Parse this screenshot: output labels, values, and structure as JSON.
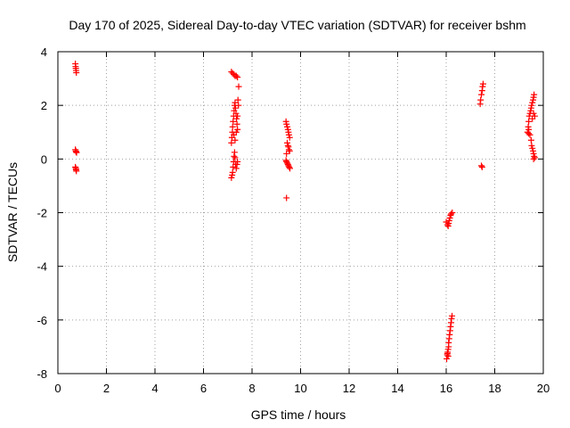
{
  "chart_data": {
    "type": "scatter",
    "title": "Day 170 of 2025, Sidereal Day-to-day VTEC variation (SDTVAR) for receiver bshm",
    "xlabel": "GPS time / hours",
    "ylabel": "SDTVAR / TECUs",
    "xlim": [
      0,
      20
    ],
    "ylim": [
      -8,
      4
    ],
    "xticks": [
      0,
      2,
      4,
      6,
      8,
      10,
      12,
      14,
      16,
      18,
      20
    ],
    "yticks": [
      -8,
      -6,
      -4,
      -2,
      0,
      2,
      4
    ],
    "xtick_labels": [
      "0",
      "2",
      "4",
      "6",
      "8",
      "10",
      "12",
      "14",
      "16",
      "18",
      "20"
    ],
    "ytick_labels": [
      "-8",
      "-6",
      "-4",
      "-2",
      "0",
      "2",
      "4"
    ],
    "grid": true,
    "marker": "+",
    "colors": {
      "series": "#ff0000",
      "grid": "#a0a0a0",
      "axis": "#000000"
    },
    "series": [
      {
        "name": "SDTVAR",
        "points": [
          [
            0.72,
            3.55
          ],
          [
            0.73,
            3.45
          ],
          [
            0.74,
            3.38
          ],
          [
            0.75,
            3.3
          ],
          [
            0.76,
            3.22
          ],
          [
            0.72,
            0.35
          ],
          [
            0.74,
            0.3
          ],
          [
            0.75,
            0.27
          ],
          [
            0.77,
            0.24
          ],
          [
            0.72,
            -0.3
          ],
          [
            0.74,
            -0.35
          ],
          [
            0.75,
            -0.4
          ],
          [
            0.76,
            -0.45
          ],
          [
            7.15,
            3.25
          ],
          [
            7.2,
            3.2
          ],
          [
            7.25,
            3.15
          ],
          [
            7.3,
            3.1
          ],
          [
            7.35,
            3.1
          ],
          [
            7.4,
            3.05
          ],
          [
            7.45,
            2.7
          ],
          [
            7.15,
            0.6
          ],
          [
            7.17,
            0.8
          ],
          [
            7.19,
            1.0
          ],
          [
            7.2,
            1.2
          ],
          [
            7.22,
            1.4
          ],
          [
            7.24,
            1.6
          ],
          [
            7.26,
            1.8
          ],
          [
            7.28,
            2.0
          ],
          [
            7.3,
            2.1
          ],
          [
            7.32,
            1.9
          ],
          [
            7.34,
            1.7
          ],
          [
            7.36,
            1.5
          ],
          [
            7.38,
            1.3
          ],
          [
            7.4,
            1.1
          ],
          [
            7.42,
            2.2
          ],
          [
            7.44,
            2.0
          ],
          [
            7.25,
            0.9
          ],
          [
            7.3,
            0.7
          ],
          [
            7.35,
            1.0
          ],
          [
            7.4,
            1.6
          ],
          [
            7.15,
            -0.7
          ],
          [
            7.18,
            -0.6
          ],
          [
            7.2,
            -0.5
          ],
          [
            7.22,
            -0.3
          ],
          [
            7.24,
            -0.1
          ],
          [
            7.26,
            0.1
          ],
          [
            7.28,
            0.25
          ],
          [
            7.3,
            0.05
          ],
          [
            7.32,
            -0.2
          ],
          [
            7.35,
            -0.35
          ],
          [
            7.38,
            -0.2
          ],
          [
            7.4,
            -0.1
          ],
          [
            9.4,
            1.4
          ],
          [
            9.42,
            1.3
          ],
          [
            9.45,
            1.2
          ],
          [
            9.48,
            1.1
          ],
          [
            9.5,
            1.0
          ],
          [
            9.52,
            0.9
          ],
          [
            9.55,
            0.8
          ],
          [
            9.45,
            0.6
          ],
          [
            9.48,
            0.5
          ],
          [
            9.5,
            0.45
          ],
          [
            9.52,
            0.35
          ],
          [
            9.55,
            0.3
          ],
          [
            9.42,
            0.2
          ],
          [
            9.4,
            -0.05
          ],
          [
            9.42,
            -0.1
          ],
          [
            9.45,
            -0.15
          ],
          [
            9.48,
            -0.2
          ],
          [
            9.5,
            -0.25
          ],
          [
            9.53,
            -0.3
          ],
          [
            9.56,
            -0.35
          ],
          [
            9.42,
            -1.45
          ],
          [
            16.0,
            -2.35
          ],
          [
            16.05,
            -2.45
          ],
          [
            16.1,
            -2.4
          ],
          [
            16.12,
            -2.3
          ],
          [
            16.15,
            -2.2
          ],
          [
            16.18,
            -2.1
          ],
          [
            16.2,
            -2.05
          ],
          [
            16.25,
            -2.0
          ],
          [
            16.08,
            -2.5
          ],
          [
            16.02,
            -7.45
          ],
          [
            16.04,
            -7.3
          ],
          [
            16.06,
            -7.2
          ],
          [
            16.08,
            -7.1
          ],
          [
            16.1,
            -7.0
          ],
          [
            16.1,
            -6.85
          ],
          [
            16.12,
            -6.7
          ],
          [
            16.14,
            -6.55
          ],
          [
            16.16,
            -6.4
          ],
          [
            16.18,
            -6.25
          ],
          [
            16.2,
            -6.1
          ],
          [
            16.22,
            -5.95
          ],
          [
            16.24,
            -5.85
          ],
          [
            16.05,
            -7.25
          ],
          [
            16.08,
            -7.35
          ],
          [
            17.4,
            2.05
          ],
          [
            17.42,
            2.2
          ],
          [
            17.45,
            2.4
          ],
          [
            17.48,
            2.55
          ],
          [
            17.5,
            2.7
          ],
          [
            17.52,
            2.8
          ],
          [
            17.45,
            -0.25
          ],
          [
            17.48,
            -0.3
          ],
          [
            19.35,
            1.0
          ],
          [
            19.38,
            1.2
          ],
          [
            19.4,
            1.4
          ],
          [
            19.42,
            1.6
          ],
          [
            19.45,
            1.7
          ],
          [
            19.48,
            1.8
          ],
          [
            19.5,
            1.9
          ],
          [
            19.52,
            2.0
          ],
          [
            19.55,
            2.1
          ],
          [
            19.58,
            2.2
          ],
          [
            19.6,
            2.3
          ],
          [
            19.62,
            2.4
          ],
          [
            19.4,
            1.1
          ],
          [
            19.45,
            0.9
          ],
          [
            19.5,
            0.7
          ],
          [
            19.52,
            0.5
          ],
          [
            19.55,
            0.4
          ],
          [
            19.58,
            0.3
          ],
          [
            19.6,
            0.2
          ],
          [
            19.62,
            0.1
          ],
          [
            19.65,
            0.05
          ],
          [
            19.55,
            1.5
          ],
          [
            19.6,
            1.7
          ],
          [
            19.65,
            1.6
          ],
          [
            19.4,
            0.95
          ],
          [
            19.6,
            0.0
          ]
        ]
      }
    ]
  }
}
